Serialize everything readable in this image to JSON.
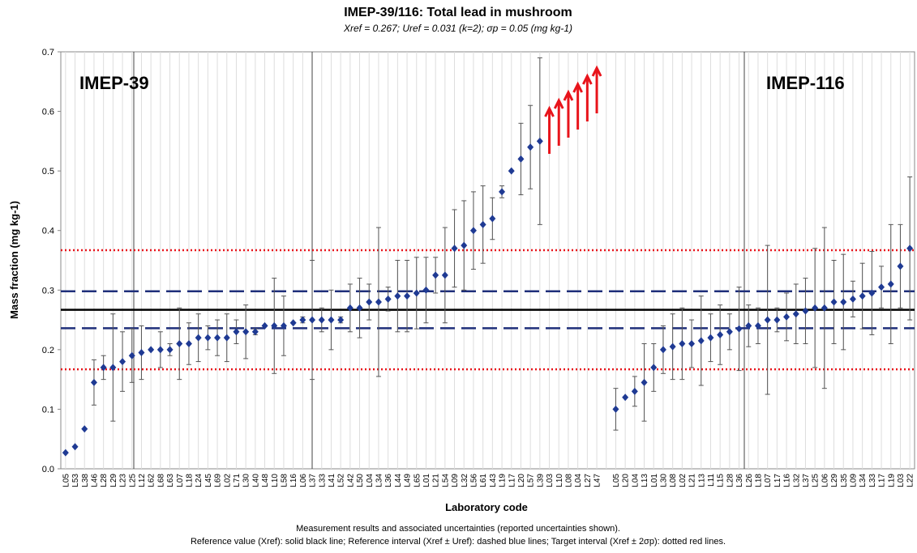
{
  "chart_data": {
    "type": "errorbar",
    "title": "IMEP-39/116: Total lead in mushroom",
    "subtitle": "Xref = 0.267; Uref = 0.031 (k=2); σp = 0.05 (mg kg-1)",
    "y_label": "Mass fraction (mg kg-1)",
    "x_label": "Laboratory code",
    "footnotes": [
      "Measurement results and associated uncertainties (reported uncertainties shown).",
      "Reference value (Xref): solid black line; Reference interval (Xref ± Uref): dashed blue lines; Target interval (Xref ± 2σp): dotted red lines."
    ],
    "annotations": [
      "IMEP-39",
      "IMEP-116"
    ],
    "ylim": [
      0,
      0.7
    ],
    "yticks": [
      {
        "value": 0,
        "label": "0.0"
      },
      0.1,
      0.2,
      0.3,
      0.4,
      0.5,
      0.6,
      0.7
    ],
    "grid": true,
    "arrow_color": "#e8141b",
    "categories": [
      "L05",
      "L53",
      "L38",
      "L46",
      "L28",
      "L29",
      "L23",
      "L25",
      "L12",
      "L62",
      "L68",
      "L63",
      "L07",
      "L18",
      "L24",
      "L45",
      "L69",
      "L02",
      "L71",
      "L30",
      "L40",
      "L48",
      "L10",
      "L58",
      "L16",
      "L06",
      "L37",
      "L33",
      "L41",
      "L52",
      "L42",
      "L50",
      "L04",
      "L34",
      "L36",
      "L44",
      "L49",
      "L65",
      "L01",
      "L21",
      "L54",
      "L09",
      "L32",
      "L56",
      "L61",
      "L43",
      "L19",
      "L17",
      "L20",
      "L57",
      "L39",
      "L03",
      "L10",
      "L08",
      "L04",
      "L27",
      "L47",
      null,
      "L05",
      "L20",
      "L04",
      "L13",
      "L01",
      "L30",
      "L08",
      "L02",
      "L21",
      "L13",
      "L11",
      "L15",
      "L28",
      "L36",
      "L26",
      "L18",
      "L07",
      "L17",
      "L16",
      "L32",
      "L37",
      "L25",
      "L06",
      "L29",
      "L35",
      "L09",
      "L34",
      "L33",
      "L17",
      "L19",
      "L03",
      "L22"
    ],
    "series": [
      {
        "color": "#1f3a93",
        "error_color": "#555555",
        "values": [
          0.027,
          0.037,
          0.067,
          0.145,
          0.17,
          0.17,
          0.18,
          0.19,
          0.195,
          0.2,
          0.2,
          0.2,
          0.21,
          0.21,
          0.22,
          0.22,
          0.22,
          0.22,
          0.23,
          0.23,
          0.23,
          0.24,
          0.24,
          0.24,
          0.245,
          0.25,
          0.25,
          0.25,
          0.25,
          0.25,
          0.27,
          0.27,
          0.28,
          0.28,
          0.285,
          0.29,
          0.29,
          0.295,
          0.3,
          0.325,
          0.325,
          0.37,
          0.375,
          0.4,
          0.41,
          0.42,
          0.465,
          0.5,
          0.52,
          0.54,
          0.55,
          null,
          null,
          null,
          null,
          null,
          null,
          null,
          0.1,
          0.12,
          0.13,
          0.145,
          0.17,
          0.2,
          0.205,
          0.21,
          0.21,
          0.215,
          0.22,
          0.225,
          0.23,
          0.235,
          0.24,
          0.24,
          0.25,
          0.25,
          0.255,
          0.26,
          0.265,
          0.27,
          0.27,
          0.28,
          0.28,
          0.285,
          0.29,
          0.295,
          0.305,
          0.31,
          0.34,
          0.37
        ],
        "errors": [
          null,
          null,
          null,
          0.038,
          0.02,
          0.09,
          0.05,
          0.045,
          0.045,
          null,
          0.03,
          0.01,
          0.06,
          0.035,
          0.04,
          0.02,
          0.03,
          0.04,
          0.02,
          0.045,
          0.005,
          null,
          0.08,
          0.05,
          null,
          0.005,
          0.1,
          0.02,
          0.05,
          0.005,
          0.04,
          0.05,
          0.03,
          0.125,
          0.02,
          0.06,
          0.06,
          0.06,
          0.055,
          0.03,
          0.08,
          0.065,
          0.075,
          0.065,
          0.065,
          0.035,
          0.01,
          null,
          0.06,
          0.07,
          0.14,
          null,
          null,
          null,
          null,
          null,
          null,
          null,
          0.035,
          null,
          0.025,
          0.065,
          0.04,
          0.04,
          0.055,
          0.06,
          0.04,
          0.075,
          0.04,
          0.05,
          0.03,
          0.07,
          0.035,
          0.03,
          0.125,
          0.02,
          0.04,
          0.05,
          0.055,
          0.1,
          0.135,
          0.07,
          0.08,
          0.03,
          0.055,
          0.07,
          0.035,
          0.1,
          0.07,
          0.12
        ]
      }
    ],
    "reference_lines": [
      {
        "value": 0.267,
        "style": "solid",
        "color": "#000000"
      },
      {
        "value": 0.236,
        "style": "dashed",
        "color": "#1f2f7a"
      },
      {
        "value": 0.298,
        "style": "dashed",
        "color": "#1f2f7a"
      },
      {
        "value": 0.167,
        "style": "dotted",
        "color": "#e8141b"
      },
      {
        "value": 0.367,
        "style": "dotted",
        "color": "#e8141b"
      }
    ]
  }
}
